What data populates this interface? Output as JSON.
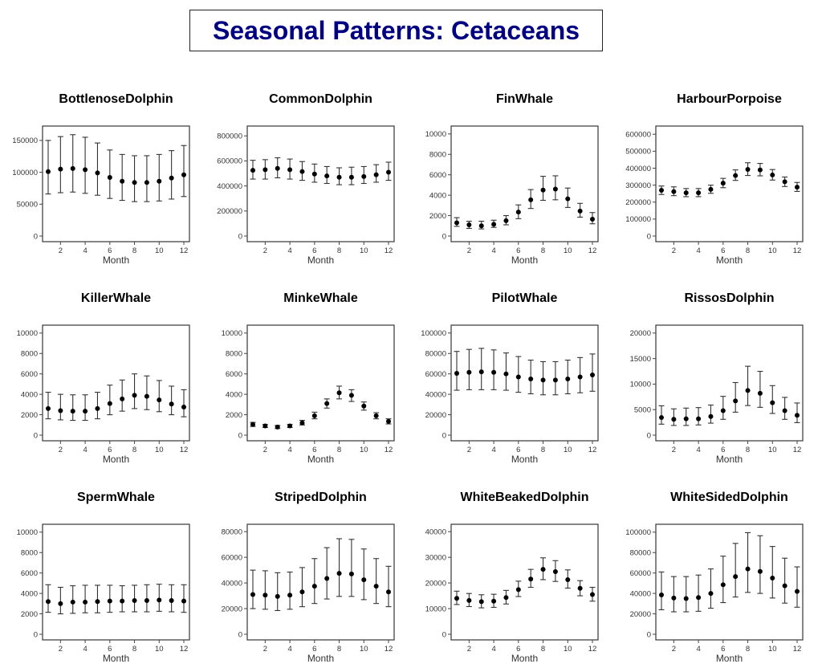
{
  "header": {
    "title": "Seasonal Patterns: Cetaceans"
  },
  "colors": {
    "title": "#000080",
    "frame": "#444444",
    "points": "#000000"
  },
  "chart_data": [
    {
      "type": "scatter",
      "title": "BottlenoseDolphin",
      "xlabel": "Month",
      "ylabel": "",
      "x": [
        1,
        2,
        3,
        4,
        5,
        6,
        7,
        8,
        9,
        10,
        11,
        12
      ],
      "xticks": [
        2,
        4,
        6,
        8,
        10,
        12
      ],
      "ylim": [
        0,
        165000
      ],
      "yticks": [
        0,
        50000,
        100000,
        150000
      ],
      "values": [
        101000,
        105000,
        106000,
        104000,
        99000,
        92000,
        86000,
        84000,
        84000,
        86000,
        91000,
        96000
      ],
      "lower": [
        66000,
        68000,
        69000,
        67000,
        64000,
        59000,
        56000,
        54000,
        54000,
        55000,
        58000,
        62000
      ],
      "upper": [
        150000,
        156000,
        159000,
        155000,
        146000,
        135000,
        128000,
        126000,
        126000,
        128000,
        134000,
        142000
      ]
    },
    {
      "type": "scatter",
      "title": "CommonDolphin",
      "xlabel": "Month",
      "ylabel": "",
      "x": [
        1,
        2,
        3,
        4,
        5,
        6,
        7,
        8,
        9,
        10,
        11,
        12
      ],
      "xticks": [
        2,
        4,
        6,
        8,
        10,
        12
      ],
      "ylim": [
        0,
        840000
      ],
      "yticks": [
        0,
        200000,
        400000,
        600000,
        800000
      ],
      "values": [
        525000,
        530000,
        540000,
        530000,
        515000,
        495000,
        480000,
        470000,
        470000,
        475000,
        490000,
        510000
      ],
      "lower": [
        455000,
        455000,
        465000,
        455000,
        445000,
        430000,
        420000,
        410000,
        410000,
        420000,
        430000,
        445000
      ],
      "upper": [
        605000,
        610000,
        625000,
        615000,
        595000,
        575000,
        555000,
        545000,
        550000,
        555000,
        570000,
        590000
      ]
    },
    {
      "type": "scatter",
      "title": "FinWhale",
      "xlabel": "Month",
      "ylabel": "",
      "x": [
        1,
        2,
        3,
        4,
        5,
        6,
        7,
        8,
        9,
        10,
        11,
        12
      ],
      "xticks": [
        2,
        4,
        6,
        8,
        10,
        12
      ],
      "ylim": [
        0,
        10300
      ],
      "yticks": [
        0,
        2000,
        4000,
        6000,
        8000,
        10000
      ],
      "values": [
        1300,
        1100,
        1000,
        1150,
        1500,
        2350,
        3550,
        4500,
        4600,
        3650,
        2450,
        1650
      ],
      "lower": [
        950,
        750,
        700,
        850,
        1100,
        1700,
        2700,
        3500,
        3550,
        2800,
        1850,
        1200
      ],
      "upper": [
        1800,
        1450,
        1450,
        1550,
        2000,
        3050,
        4550,
        5850,
        5900,
        4700,
        3200,
        2300
      ]
    },
    {
      "type": "scatter",
      "title": "HarbourPorpoise",
      "xlabel": "Month",
      "ylabel": "",
      "x": [
        1,
        2,
        3,
        4,
        5,
        6,
        7,
        8,
        9,
        10,
        11,
        12
      ],
      "xticks": [
        2,
        4,
        6,
        8,
        10,
        12
      ],
      "ylim": [
        0,
        620000
      ],
      "yticks": [
        0,
        100000,
        200000,
        300000,
        400000,
        500000,
        600000
      ],
      "values": [
        270000,
        262000,
        255000,
        255000,
        275000,
        312000,
        357000,
        393000,
        390000,
        360000,
        320000,
        288000
      ],
      "lower": [
        245000,
        238000,
        232000,
        232000,
        252000,
        285000,
        328000,
        357000,
        355000,
        330000,
        292000,
        263000
      ],
      "upper": [
        295000,
        290000,
        280000,
        280000,
        300000,
        340000,
        390000,
        432000,
        428000,
        392000,
        348000,
        316000
      ]
    },
    {
      "type": "scatter",
      "title": "KillerWhale",
      "xlabel": "Month",
      "ylabel": "",
      "x": [
        1,
        2,
        3,
        4,
        5,
        6,
        7,
        8,
        9,
        10,
        11,
        12
      ],
      "xticks": [
        2,
        4,
        6,
        8,
        10,
        12
      ],
      "ylim": [
        0,
        10300
      ],
      "yticks": [
        0,
        2000,
        4000,
        6000,
        8000,
        10000
      ],
      "values": [
        2600,
        2400,
        2350,
        2350,
        2600,
        3100,
        3550,
        3900,
        3800,
        3450,
        3050,
        2750
      ],
      "lower": [
        1600,
        1500,
        1450,
        1450,
        1600,
        2000,
        2350,
        2600,
        2500,
        2300,
        2000,
        1800
      ],
      "upper": [
        4200,
        4000,
        3950,
        3950,
        4200,
        4900,
        5400,
        6000,
        5800,
        5350,
        4800,
        4450
      ]
    },
    {
      "type": "scatter",
      "title": "MinkeWhale",
      "xlabel": "Month",
      "ylabel": "",
      "x": [
        1,
        2,
        3,
        4,
        5,
        6,
        7,
        8,
        9,
        10,
        11,
        12
      ],
      "xticks": [
        2,
        4,
        6,
        8,
        10,
        12
      ],
      "ylim": [
        0,
        10300
      ],
      "yticks": [
        0,
        2000,
        4000,
        6000,
        8000,
        10000
      ],
      "values": [
        1050,
        900,
        800,
        900,
        1200,
        1900,
        3100,
        4150,
        3900,
        2850,
        1900,
        1350
      ],
      "lower": [
        850,
        750,
        650,
        750,
        1000,
        1600,
        2650,
        3550,
        3300,
        2450,
        1600,
        1100
      ],
      "upper": [
        1250,
        1050,
        950,
        1050,
        1450,
        2250,
        3550,
        4800,
        4450,
        3250,
        2200,
        1600
      ]
    },
    {
      "type": "scatter",
      "title": "PilotWhale",
      "xlabel": "Month",
      "ylabel": "",
      "x": [
        1,
        2,
        3,
        4,
        5,
        6,
        7,
        8,
        9,
        10,
        11,
        12
      ],
      "xticks": [
        2,
        4,
        6,
        8,
        10,
        12
      ],
      "ylim": [
        0,
        103000
      ],
      "yticks": [
        0,
        20000,
        40000,
        60000,
        80000,
        100000
      ],
      "values": [
        60500,
        61500,
        62000,
        61500,
        60000,
        57000,
        55000,
        54000,
        54000,
        55000,
        57000,
        59000
      ],
      "lower": [
        44000,
        44500,
        44500,
        44500,
        44000,
        42000,
        40500,
        39500,
        39500,
        40500,
        41500,
        43000
      ],
      "upper": [
        82000,
        84000,
        85000,
        83500,
        80500,
        77000,
        73500,
        72000,
        72000,
        73500,
        76000,
        79500
      ]
    },
    {
      "type": "scatter",
      "title": "RissosDolphin",
      "xlabel": "Month",
      "ylabel": "",
      "x": [
        1,
        2,
        3,
        4,
        5,
        6,
        7,
        8,
        9,
        10,
        11,
        12
      ],
      "xticks": [
        2,
        4,
        6,
        8,
        10,
        12
      ],
      "ylim": [
        0,
        20600
      ],
      "yticks": [
        0,
        5000,
        10000,
        15000,
        20000
      ],
      "values": [
        3450,
        3100,
        3200,
        3200,
        3650,
        4800,
        6700,
        8750,
        8200,
        6350,
        4800,
        3900
      ],
      "lower": [
        2150,
        1900,
        1900,
        2000,
        2350,
        3100,
        4500,
        5800,
        5450,
        4250,
        3100,
        2450
      ],
      "upper": [
        5750,
        5150,
        5300,
        5400,
        5900,
        7600,
        10300,
        13500,
        12500,
        9700,
        7400,
        6300
      ]
    },
    {
      "type": "scatter",
      "title": "SpermWhale",
      "xlabel": "Month",
      "ylabel": "",
      "x": [
        1,
        2,
        3,
        4,
        5,
        6,
        7,
        8,
        9,
        10,
        11,
        12
      ],
      "xticks": [
        2,
        4,
        6,
        8,
        10,
        12
      ],
      "ylim": [
        0,
        10300
      ],
      "yticks": [
        0,
        2000,
        4000,
        6000,
        8000,
        10000
      ],
      "values": [
        3200,
        3000,
        3150,
        3150,
        3200,
        3250,
        3250,
        3300,
        3300,
        3350,
        3300,
        3250
      ],
      "lower": [
        2150,
        2000,
        2050,
        2100,
        2100,
        2150,
        2200,
        2200,
        2200,
        2250,
        2200,
        2150
      ],
      "upper": [
        4850,
        4600,
        4750,
        4800,
        4800,
        4800,
        4750,
        4800,
        4850,
        4900,
        4850,
        4850
      ]
    },
    {
      "type": "scatter",
      "title": "StripedDolphin",
      "xlabel": "Month",
      "ylabel": "",
      "x": [
        1,
        2,
        3,
        4,
        5,
        6,
        7,
        8,
        9,
        10,
        11,
        12
      ],
      "xticks": [
        2,
        4,
        6,
        8,
        10,
        12
      ],
      "ylim": [
        0,
        82000
      ],
      "yticks": [
        0,
        20000,
        40000,
        60000,
        80000
      ],
      "values": [
        31000,
        30500,
        29500,
        30500,
        33000,
        37500,
        43500,
        47500,
        47000,
        42500,
        37500,
        33000
      ],
      "lower": [
        20000,
        19500,
        18500,
        19500,
        21500,
        24000,
        27500,
        29500,
        29500,
        27000,
        24000,
        21500
      ],
      "upper": [
        50000,
        49500,
        48000,
        48500,
        52000,
        59000,
        67500,
        74500,
        74000,
        66500,
        59000,
        53000
      ]
    },
    {
      "type": "scatter",
      "title": "WhiteBeakedDolphin",
      "xlabel": "Month",
      "ylabel": "",
      "x": [
        1,
        2,
        3,
        4,
        5,
        6,
        7,
        8,
        9,
        10,
        11,
        12
      ],
      "xticks": [
        2,
        4,
        6,
        8,
        10,
        12
      ],
      "ylim": [
        0,
        41000
      ],
      "yticks": [
        0,
        10000,
        20000,
        30000,
        40000
      ],
      "values": [
        14000,
        13200,
        12700,
        12900,
        14300,
        17400,
        21500,
        25300,
        24400,
        21300,
        17900,
        15500
      ],
      "lower": [
        11600,
        10800,
        10300,
        10500,
        11800,
        14700,
        18300,
        21300,
        20600,
        18000,
        15000,
        12900
      ],
      "upper": [
        16800,
        15900,
        15400,
        15600,
        17100,
        20700,
        25300,
        29800,
        28700,
        25100,
        20900,
        18300
      ]
    },
    {
      "type": "scatter",
      "title": "WhiteSidedDolphin",
      "xlabel": "Month",
      "ylabel": "",
      "x": [
        1,
        2,
        3,
        4,
        5,
        6,
        7,
        8,
        9,
        10,
        11,
        12
      ],
      "xticks": [
        2,
        4,
        6,
        8,
        10,
        12
      ],
      "ylim": [
        0,
        103000
      ],
      "yticks": [
        0,
        20000,
        40000,
        60000,
        80000,
        100000
      ],
      "values": [
        38500,
        35500,
        35000,
        36000,
        40000,
        48500,
        56500,
        64000,
        61500,
        55000,
        47500,
        42000
      ],
      "lower": [
        24000,
        22000,
        22000,
        22500,
        25500,
        31000,
        36500,
        41000,
        40000,
        35500,
        30500,
        26500
      ],
      "upper": [
        61000,
        56500,
        56500,
        58000,
        64000,
        76500,
        89000,
        99500,
        96500,
        86000,
        74500,
        66000
      ]
    }
  ]
}
